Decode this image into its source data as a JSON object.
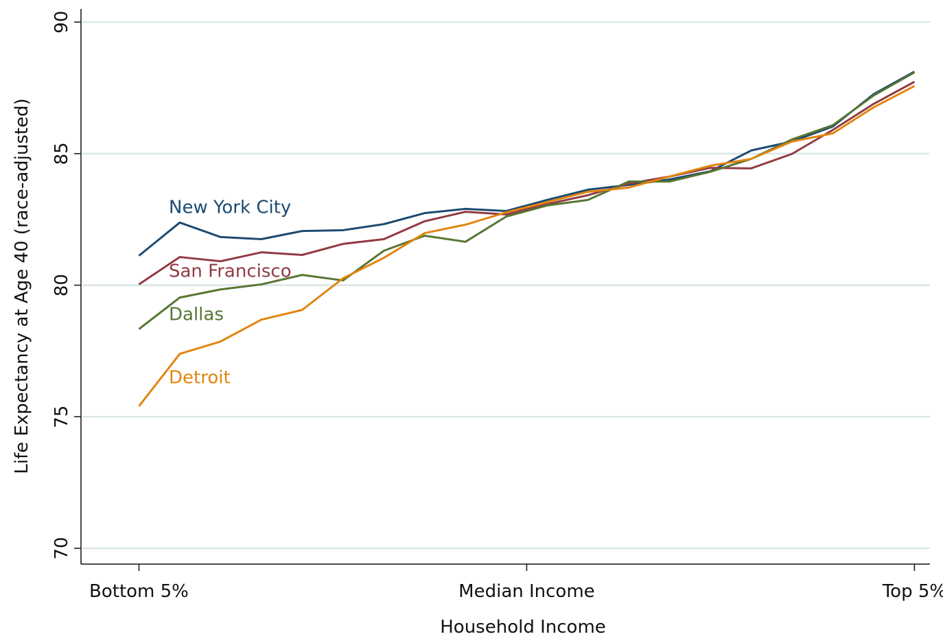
{
  "chart_data": {
    "type": "line",
    "x_label": "Household Income",
    "y_label": "Life Expectancy at Age 40 (race-adjusted)",
    "x": [
      2.5,
      7.5,
      12.5,
      17.5,
      22.5,
      27.5,
      32.5,
      37.5,
      42.5,
      47.5,
      52.5,
      57.5,
      62.5,
      67.5,
      72.5,
      77.5,
      82.5,
      87.5,
      92.5,
      97.5
    ],
    "xlim": [
      -4.6,
      99.4
    ],
    "xticks": [
      {
        "value": 2.5,
        "label": "Bottom 5%"
      },
      {
        "value": 50,
        "label": "Median Income"
      },
      {
        "value": 97.5,
        "label": "Top 5%"
      }
    ],
    "ylim": [
      69.4,
      90.5
    ],
    "yticks": [
      70,
      75,
      80,
      85,
      90
    ],
    "grid": true,
    "series": [
      {
        "name": "New York City",
        "color": "#1c4a72",
        "values": [
          81.12,
          82.38,
          81.83,
          81.75,
          82.06,
          82.09,
          82.32,
          82.74,
          82.9,
          82.82,
          83.24,
          83.63,
          83.81,
          84.02,
          84.33,
          85.12,
          85.46,
          86.03,
          87.26,
          88.12
        ]
      },
      {
        "name": "San Francisco",
        "color": "#923a42",
        "values": [
          80.03,
          81.07,
          80.91,
          81.25,
          81.15,
          81.57,
          81.75,
          82.43,
          82.79,
          82.69,
          83.08,
          83.42,
          83.86,
          84.13,
          84.46,
          84.44,
          84.99,
          85.9,
          86.89,
          87.73
        ]
      },
      {
        "name": "Dallas",
        "color": "#577632",
        "values": [
          78.33,
          79.53,
          79.84,
          80.03,
          80.39,
          80.18,
          81.31,
          81.88,
          81.65,
          82.61,
          83.03,
          83.24,
          83.94,
          83.94,
          84.31,
          84.8,
          85.54,
          86.08,
          87.21,
          88.09
        ]
      },
      {
        "name": "Detroit",
        "color": "#e2850f",
        "values": [
          75.4,
          77.39,
          77.86,
          78.69,
          79.06,
          80.26,
          81.04,
          81.98,
          82.3,
          82.77,
          83.16,
          83.55,
          83.71,
          84.13,
          84.54,
          84.8,
          85.46,
          85.77,
          86.76,
          87.57
        ]
      }
    ]
  }
}
